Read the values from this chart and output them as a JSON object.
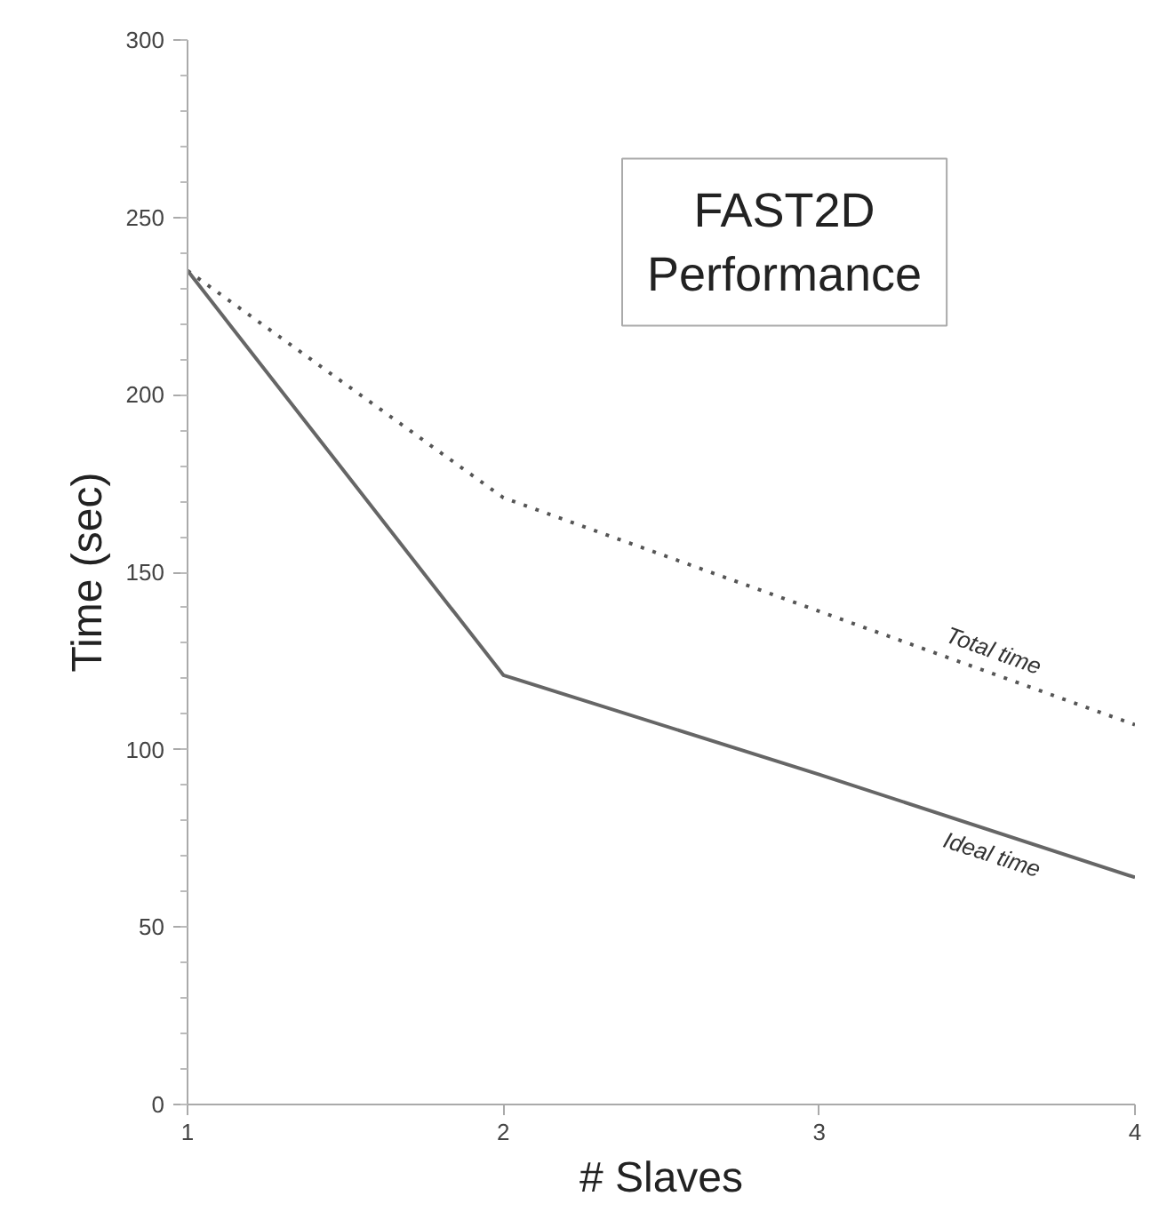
{
  "chart_data": {
    "type": "line",
    "title": "FAST2D\nPerformance",
    "xlabel": "# Slaves",
    "ylabel": "Time (sec)",
    "x": [
      1,
      2,
      3,
      4
    ],
    "series": [
      {
        "name": "Total time",
        "color": "#555555",
        "line_style": "dotted",
        "values": [
          235,
          171,
          139,
          107
        ]
      },
      {
        "name": "Ideal time",
        "color": "#666666",
        "line_style": "solid",
        "values": [
          235,
          121,
          93,
          64
        ]
      }
    ],
    "xlim": [
      1,
      4
    ],
    "ylim": [
      0,
      300
    ],
    "xticks": [
      1,
      2,
      3,
      4
    ],
    "yticks": [
      0,
      50,
      100,
      150,
      200,
      250,
      300
    ],
    "grid": false,
    "marker": "none"
  }
}
